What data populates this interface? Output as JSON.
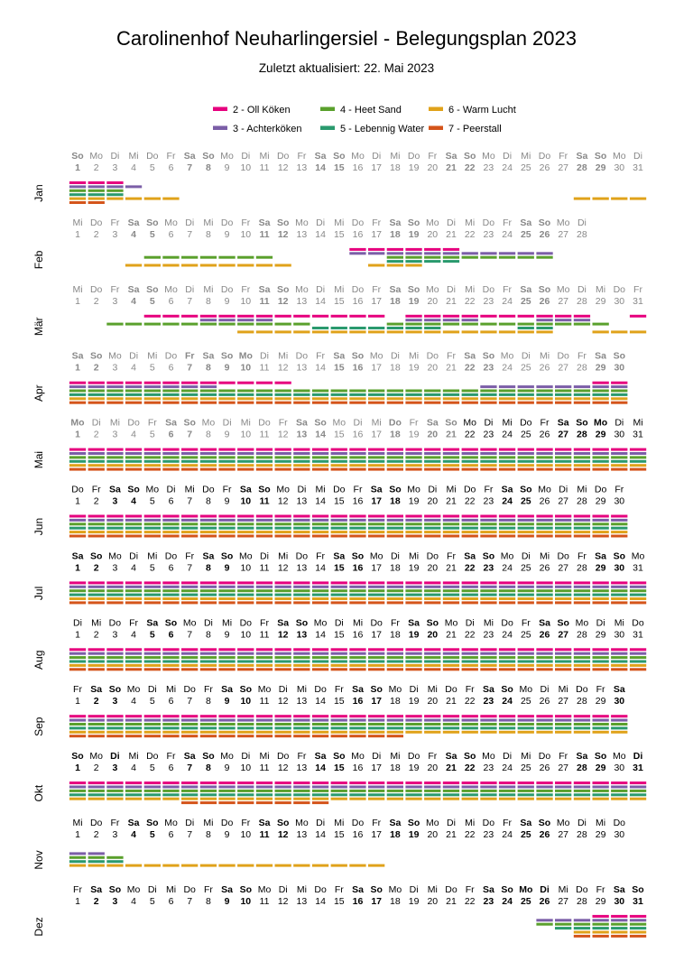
{
  "title": "Carolinenhof Neuharlingersiel - Belegungsplan 2023",
  "subtitle": "Zuletzt aktualisiert: 22. Mai 2023",
  "colors": {
    "past": "#888888",
    "text": "#000000",
    "series": {
      "2": "#e6007e",
      "3": "#7b5ea7",
      "4": "#5aa02c",
      "5": "#2a9a6e",
      "6": "#e0a21a",
      "7": "#d4541a"
    }
  },
  "chart_data": {
    "type": "timeline",
    "year": 2023,
    "legend": [
      {
        "id": "2",
        "name": "2 - Oll Köken"
      },
      {
        "id": "4",
        "name": "4 - Heet Sand"
      },
      {
        "id": "6",
        "name": "6 - Warm Lucht"
      },
      {
        "id": "3",
        "name": "3 - Achterköken"
      },
      {
        "id": "5",
        "name": "5 - Lebennig Water"
      },
      {
        "id": "7",
        "name": "7 - Peerstall"
      }
    ],
    "weekday_names": [
      "So",
      "Mo",
      "Di",
      "Mi",
      "Do",
      "Fr",
      "Sa"
    ],
    "holidays": [
      "1-1",
      "4-7",
      "4-9",
      "4-10",
      "5-1",
      "5-18",
      "5-28",
      "5-29",
      "10-3",
      "10-31",
      "12-25",
      "12-26"
    ],
    "months": [
      {
        "label": "Jan",
        "days": 31,
        "bookings": {
          "2": [
            [
              1,
              3
            ]
          ],
          "3": [
            [
              1,
              4
            ]
          ],
          "4": [
            [
              1,
              3
            ]
          ],
          "5": [
            [
              1,
              3
            ]
          ],
          "6": [
            [
              1,
              6
            ],
            [
              28,
              31
            ]
          ],
          "7": [
            [
              1,
              2
            ]
          ]
        }
      },
      {
        "label": "Feb",
        "days": 28,
        "bookings": {
          "2": [
            [
              16,
              21
            ]
          ],
          "3": [
            [
              16,
              26
            ]
          ],
          "4": [
            [
              5,
              11
            ],
            [
              18,
              26
            ]
          ],
          "5": [
            [
              18,
              21
            ]
          ],
          "6": [
            [
              4,
              12
            ],
            [
              17,
              19
            ]
          ]
        }
      },
      {
        "label": "Mär",
        "days": 31,
        "bookings": {
          "2": [
            [
              5,
              17
            ],
            [
              19,
              28
            ],
            [
              31,
              31
            ]
          ],
          "3": [
            [
              8,
              11
            ],
            [
              19,
              22
            ],
            [
              26,
              28
            ]
          ],
          "4": [
            [
              3,
              13
            ],
            [
              18,
              29
            ]
          ],
          "5": [
            [
              14,
              20
            ],
            [
              25,
              26
            ]
          ],
          "6": [
            [
              10,
              26
            ],
            [
              29,
              31
            ]
          ]
        }
      },
      {
        "label": "Apr",
        "days": 30,
        "bookings": {
          "2": [
            [
              1,
              12
            ],
            [
              29,
              30
            ]
          ],
          "3": [
            [
              1,
              8
            ],
            [
              23,
              30
            ]
          ],
          "4": [
            [
              1,
              30
            ]
          ],
          "5": [
            [
              1,
              30
            ]
          ],
          "6": [
            [
              1,
              30
            ]
          ],
          "7": [
            [
              1,
              30
            ]
          ]
        }
      },
      {
        "label": "Mai",
        "days": 31,
        "bookings": {
          "2": [
            [
              1,
              31
            ]
          ],
          "3": [
            [
              1,
              31
            ]
          ],
          "4": [
            [
              1,
              31
            ]
          ],
          "5": [
            [
              1,
              31
            ]
          ],
          "6": [
            [
              1,
              31
            ]
          ],
          "7": [
            [
              1,
              31
            ]
          ]
        }
      },
      {
        "label": "Jun",
        "days": 30,
        "bookings": {
          "2": [
            [
              1,
              30
            ]
          ],
          "3": [
            [
              1,
              30
            ]
          ],
          "4": [
            [
              1,
              30
            ]
          ],
          "5": [
            [
              1,
              30
            ]
          ],
          "6": [
            [
              1,
              30
            ]
          ],
          "7": [
            [
              1,
              30
            ]
          ]
        }
      },
      {
        "label": "Jul",
        "days": 31,
        "bookings": {
          "2": [
            [
              1,
              31
            ]
          ],
          "3": [
            [
              1,
              31
            ]
          ],
          "4": [
            [
              1,
              31
            ]
          ],
          "5": [
            [
              1,
              31
            ]
          ],
          "6": [
            [
              1,
              31
            ]
          ],
          "7": [
            [
              1,
              31
            ]
          ]
        }
      },
      {
        "label": "Aug",
        "days": 31,
        "bookings": {
          "2": [
            [
              1,
              31
            ]
          ],
          "3": [
            [
              1,
              31
            ]
          ],
          "4": [
            [
              1,
              31
            ]
          ],
          "5": [
            [
              1,
              31
            ]
          ],
          "6": [
            [
              1,
              31
            ]
          ],
          "7": [
            [
              1,
              31
            ]
          ]
        }
      },
      {
        "label": "Sep",
        "days": 30,
        "bookings": {
          "2": [
            [
              1,
              30
            ]
          ],
          "3": [
            [
              1,
              30
            ]
          ],
          "4": [
            [
              1,
              30
            ]
          ],
          "5": [
            [
              1,
              30
            ]
          ],
          "6": [
            [
              1,
              30
            ]
          ],
          "7": [
            [
              1,
              18
            ]
          ]
        }
      },
      {
        "label": "Okt",
        "days": 31,
        "bookings": {
          "2": [
            [
              1,
              31
            ]
          ],
          "3": [
            [
              1,
              31
            ]
          ],
          "4": [
            [
              1,
              31
            ]
          ],
          "5": [
            [
              1,
              31
            ]
          ],
          "6": [
            [
              1,
              31
            ]
          ],
          "7": [
            [
              7,
              14
            ]
          ]
        }
      },
      {
        "label": "Nov",
        "days": 30,
        "bookings": {
          "3": [
            [
              1,
              2
            ]
          ],
          "4": [
            [
              1,
              3
            ]
          ],
          "5": [
            [
              1,
              3
            ]
          ],
          "6": [
            [
              1,
              17
            ]
          ]
        }
      },
      {
        "label": "Dez",
        "days": 31,
        "bookings": {
          "2": [
            [
              29,
              31
            ]
          ],
          "3": [
            [
              26,
              31
            ]
          ],
          "4": [
            [
              26,
              31
            ]
          ],
          "5": [
            [
              27,
              31
            ]
          ],
          "6": [
            [
              28,
              31
            ]
          ],
          "7": [
            [
              28,
              31
            ]
          ]
        }
      }
    ]
  }
}
